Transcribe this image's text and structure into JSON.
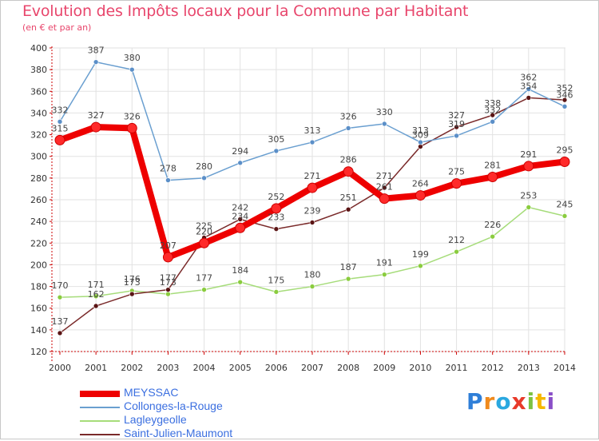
{
  "header": {
    "title": "Evolution des Impôts locaux pour la Commune par Habitant",
    "subtitle": "(en € et par an)"
  },
  "logo": {
    "text": "Proxiti",
    "letters": [
      "P",
      "r",
      "o",
      "x",
      "i",
      "t",
      "i"
    ]
  },
  "colors": {
    "title": "#e8466c",
    "axis": "#cc0000",
    "grid": "#e2e2e2",
    "legend_text": "#3b6fe0"
  },
  "chart_data": {
    "type": "line",
    "title": "Evolution des Impôts locaux pour la Commune par Habitant",
    "subtitle": "(en € et par an)",
    "xlabel": "",
    "ylabel": "",
    "x": [
      "2000",
      "2001",
      "2002",
      "2003",
      "2004",
      "2005",
      "2006",
      "2007",
      "2008",
      "2009",
      "2010",
      "2011",
      "2012",
      "2013",
      "2014"
    ],
    "ylim": [
      120,
      400
    ],
    "yticks": [
      120,
      140,
      160,
      180,
      200,
      220,
      240,
      260,
      280,
      300,
      320,
      340,
      360,
      380,
      400
    ],
    "grid": true,
    "legend_position": "bottom-left",
    "series": [
      {
        "name": "MEYSSAC",
        "color": "#ee0000",
        "point_color": "#ff2a2a",
        "width": "thick",
        "values": [
          315,
          327,
          326,
          207,
          220,
          234,
          252,
          271,
          286,
          261,
          264,
          275,
          281,
          291,
          295
        ]
      },
      {
        "name": "Collonges-la-Rouge",
        "color": "#6a9fd0",
        "point_color": "#5b8fc8",
        "width": "thin",
        "values": [
          332,
          387,
          380,
          278,
          280,
          294,
          305,
          313,
          326,
          330,
          313,
          319,
          332,
          362,
          346
        ]
      },
      {
        "name": "Lagleygeolle",
        "color": "#a6dc7a",
        "point_color": "#8acc3e",
        "width": "thin",
        "values": [
          170,
          171,
          176,
          173,
          177,
          184,
          175,
          180,
          187,
          191,
          199,
          212,
          226,
          253,
          245
        ]
      },
      {
        "name": "Saint-Julien-Maumont",
        "color": "#7a2a2a",
        "point_color": "#5a1414",
        "width": "thin",
        "values": [
          137,
          162,
          173,
          177,
          225,
          242,
          233,
          239,
          251,
          271,
          309,
          327,
          338,
          354,
          352
        ]
      }
    ]
  }
}
